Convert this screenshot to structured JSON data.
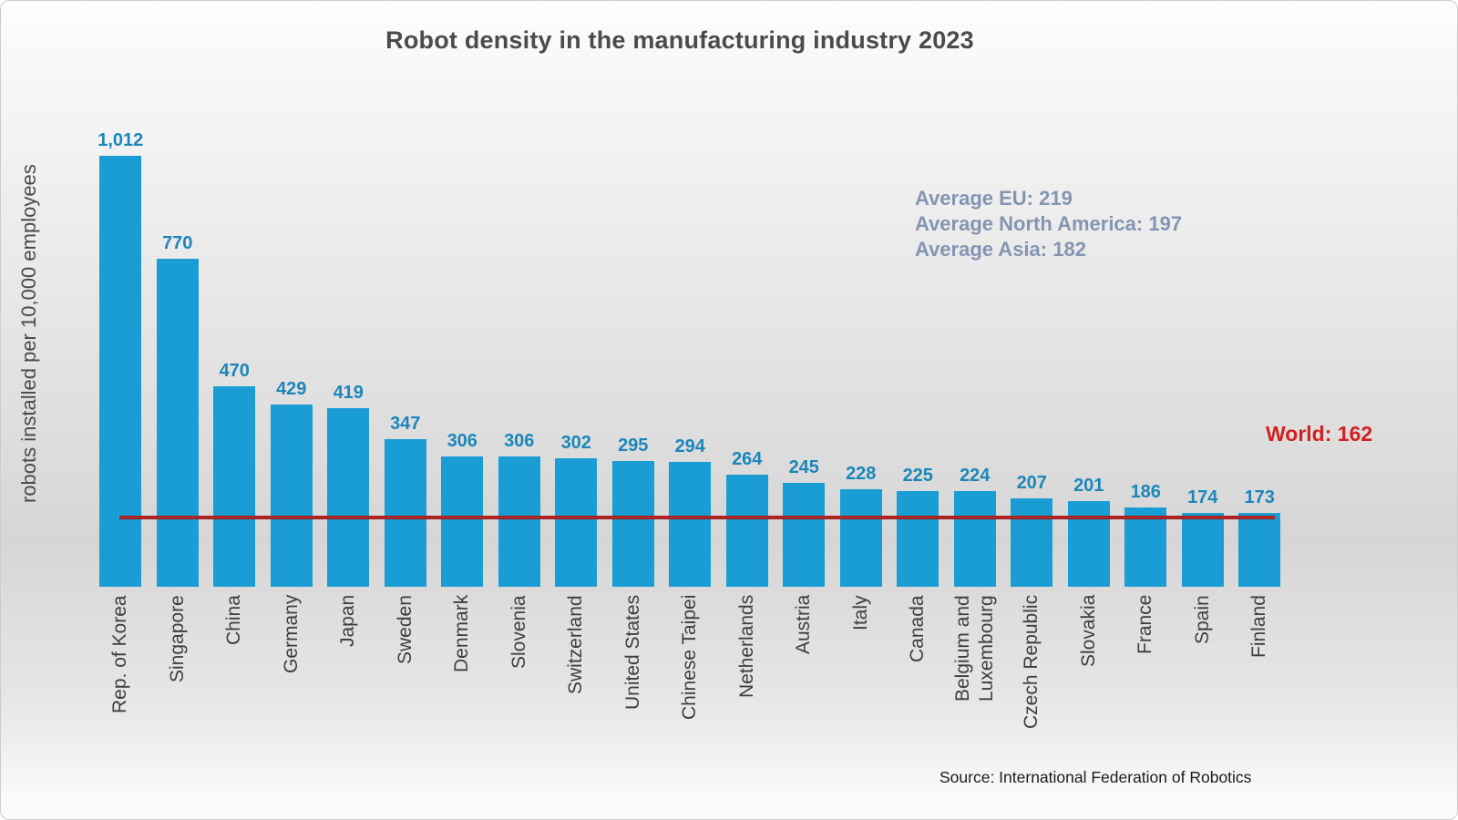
{
  "title": "Robot density in the manufacturing industry 2023",
  "y_axis_label": "robots installed per 10,000 employees",
  "annotations": {
    "average_lines": [
      "Average EU: 219",
      "Average North America: 197",
      "Average Asia: 182"
    ],
    "world_label": "World: 162"
  },
  "source": "Source: International Federation of Robotics",
  "chart_data": {
    "type": "bar",
    "title": "Robot density in the manufacturing industry 2023",
    "xlabel": "",
    "ylabel": "robots installed per 10,000 employees",
    "categories": [
      "Rep. of Korea",
      "Singapore",
      "China",
      "Germany",
      "Japan",
      "Sweden",
      "Denmark",
      "Slovenia",
      "Switzerland",
      "United States",
      "Chinese Taipei",
      "Netherlands",
      "Austria",
      "Italy",
      "Canada",
      "Belgium and\nLuxembourg",
      "Czech Republic",
      "Slovakia",
      "France",
      "Spain",
      "Finland"
    ],
    "values": [
      1012,
      770,
      470,
      429,
      419,
      347,
      306,
      306,
      302,
      295,
      294,
      264,
      245,
      228,
      225,
      224,
      207,
      201,
      186,
      174,
      173
    ],
    "value_labels": [
      "1,012",
      "770",
      "470",
      "429",
      "419",
      "347",
      "306",
      "306",
      "302",
      "295",
      "294",
      "264",
      "245",
      "228",
      "225",
      "224",
      "207",
      "201",
      "186",
      "174",
      "173"
    ],
    "y_max": 1012,
    "ylim": [
      0,
      1050
    ],
    "grid": false,
    "y_axis_ticks": "none",
    "legend": "none",
    "bar_color": "#199dd4",
    "value_label_color": "#1c86b9",
    "reference_lines": [
      {
        "label": "World: 162",
        "value": 162,
        "color": "#b01b1b"
      }
    ],
    "annotations": [
      {
        "text": "Average EU: 219",
        "value": 219
      },
      {
        "text": "Average North America: 197",
        "value": 197
      },
      {
        "text": "Average Asia: 182",
        "value": 182
      }
    ],
    "source": "Source: International Federation of Robotics"
  }
}
